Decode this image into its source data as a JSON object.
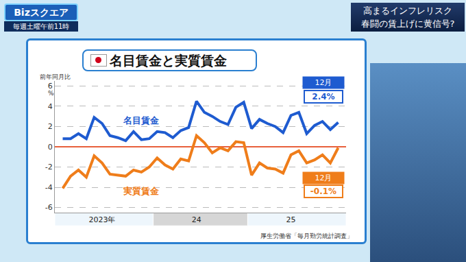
{
  "header": {
    "program": "Bizスクエア",
    "schedule": "毎週土曜午前11時",
    "headline": [
      "高まるインフレリスク",
      "春闘の賃上げに黄信号?"
    ]
  },
  "chart_data": {
    "type": "line",
    "title": "名目賃金と実質賃金",
    "subtitle": "前年同月比",
    "ylabel": "%",
    "source": "厚生労働省「毎月勤労統計調査」",
    "categories": [
      null,
      null,
      null,
      null,
      null,
      "2023年",
      null,
      null,
      null,
      null,
      null,
      null,
      null,
      null,
      null,
      null,
      null,
      "24",
      null,
      null,
      null,
      null,
      null,
      null,
      null,
      null,
      null,
      null,
      null,
      "25",
      null,
      null,
      null,
      null,
      null,
      null
    ],
    "series": [
      {
        "name": "名目賃金",
        "color": "#1e5bd0",
        "values": [
          0.8,
          0.8,
          1.3,
          0.8,
          2.9,
          2.3,
          1.1,
          0.9,
          0.6,
          1.5,
          0.7,
          0.8,
          1.5,
          1.4,
          0.9,
          1.6,
          1.9,
          4.5,
          3.4,
          3.0,
          2.5,
          2.2,
          3.9,
          4.4,
          1.8,
          2.7,
          2.3,
          2.0,
          1.4,
          3.1,
          3.4,
          1.3,
          2.1,
          2.5,
          1.7,
          2.4
        ],
        "end_label": {
          "month": "12月",
          "value_label": "2.4%"
        }
      },
      {
        "name": "実質賃金",
        "color": "#ef7d1a",
        "values": [
          -4.1,
          -2.9,
          -2.3,
          -3.0,
          -0.9,
          -1.6,
          -2.7,
          -2.8,
          -2.9,
          -2.3,
          -2.5,
          -2.0,
          -1.1,
          -1.8,
          -2.2,
          -1.2,
          -1.4,
          1.1,
          0.4,
          -0.6,
          -0.1,
          -0.4,
          0.5,
          0.4,
          -2.8,
          -1.6,
          -2.1,
          -2.2,
          -2.6,
          -0.8,
          -0.4,
          -1.6,
          -1.3,
          -0.8,
          -1.6,
          -0.1
        ],
        "end_label": {
          "month": "12月",
          "value_label": "-0.1%"
        }
      }
    ],
    "ylim": [
      -6.5,
      6.5
    ],
    "yticks": [
      -6,
      -4,
      -2,
      0,
      2,
      4,
      6
    ],
    "grid": true
  }
}
